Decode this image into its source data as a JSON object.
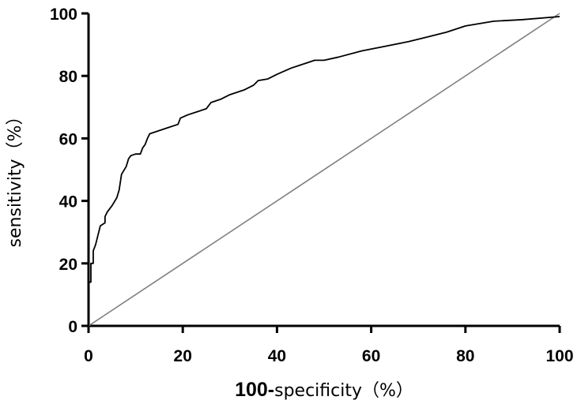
{
  "chart_data": {
    "type": "line",
    "title": "",
    "xlabel_prefix": "100-",
    "xlabel_suffix": "specificity（%）",
    "ylabel": "sensitivity（%）",
    "xlim": [
      0,
      100
    ],
    "ylim": [
      0,
      100
    ],
    "x_ticks": [
      0,
      20,
      40,
      60,
      80,
      100
    ],
    "y_ticks": [
      0,
      20,
      40,
      60,
      80,
      100
    ],
    "x_tick_labels": [
      "0",
      "20",
      "40",
      "60",
      "80",
      "100"
    ],
    "y_tick_labels": [
      "0",
      "20",
      "40",
      "60",
      "80",
      "100"
    ],
    "grid": false,
    "legend": "none",
    "colors": {
      "roc_curve": "#000000",
      "reference_line": "#808080",
      "axis": "#000000"
    },
    "series": [
      {
        "x": [
          0,
          0,
          0.5,
          0.5,
          1,
          1,
          1.5,
          2,
          2.5,
          3.5,
          3.5,
          4,
          5,
          6,
          6.5,
          7,
          8,
          8.5,
          9,
          10,
          11,
          11.5,
          12,
          12.5,
          13,
          15,
          17,
          19,
          19.5,
          21,
          23,
          25,
          26,
          28,
          30,
          33,
          35,
          36,
          38,
          40,
          43,
          46,
          48,
          50,
          53,
          58,
          63,
          68,
          72,
          76,
          80,
          86,
          92,
          100
        ],
        "y": [
          0,
          14,
          14,
          20,
          20,
          24,
          26,
          29,
          32,
          33,
          35,
          36.5,
          38.5,
          41,
          43.5,
          48.5,
          51,
          53.5,
          54.5,
          55,
          55,
          57,
          58,
          60,
          61.5,
          62.5,
          63.5,
          64.5,
          66.5,
          67.5,
          68.5,
          69.5,
          71.5,
          72.5,
          74,
          75.5,
          77,
          78.5,
          79,
          80.5,
          82.5,
          84,
          85,
          85,
          86,
          88,
          89.5,
          91,
          92.5,
          94,
          96,
          97.5,
          98,
          99
        ]
      },
      {
        "x": [
          0,
          100
        ],
        "y": [
          0,
          100
        ]
      }
    ]
  }
}
